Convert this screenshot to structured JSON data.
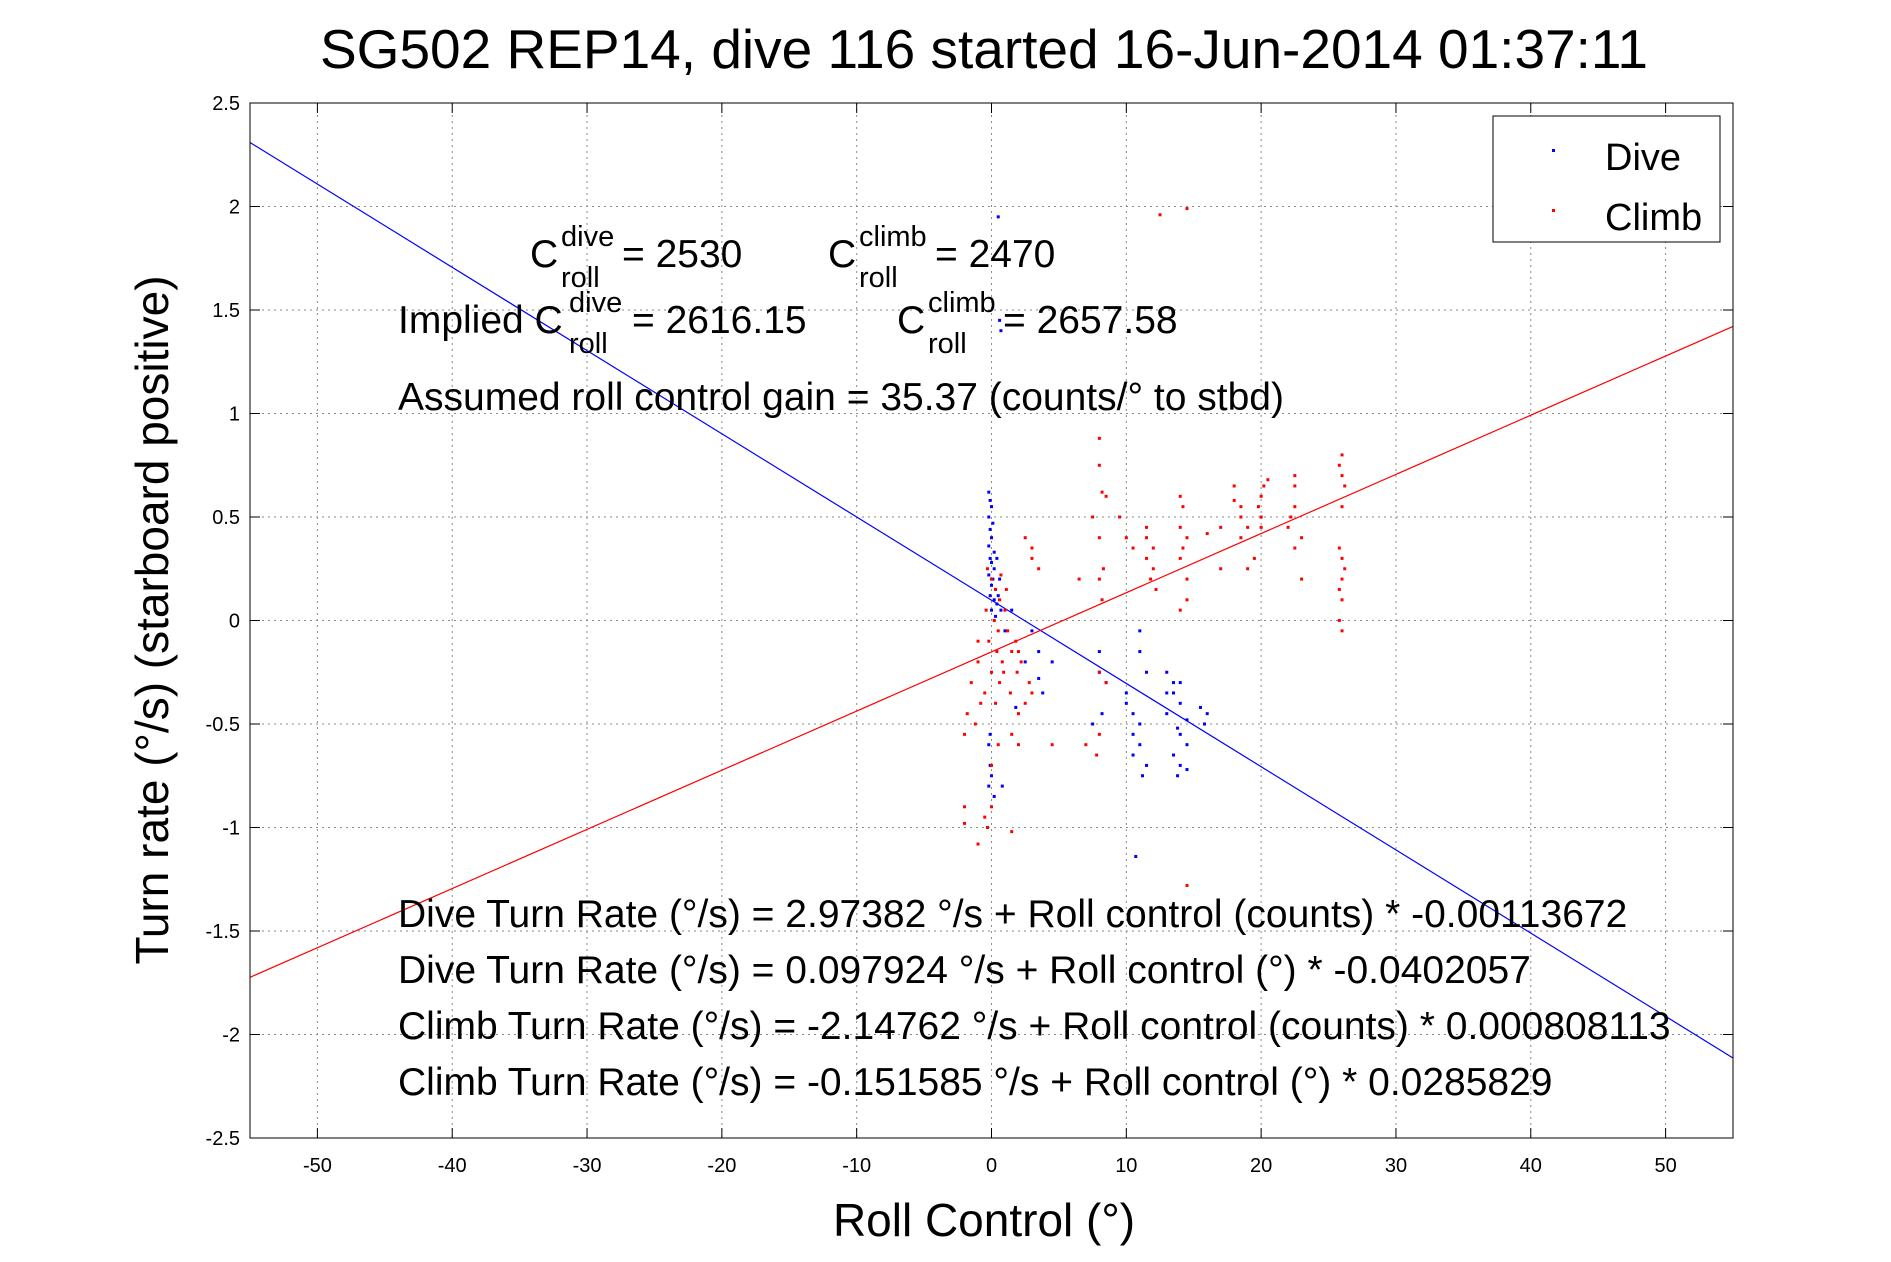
{
  "chart_data": {
    "type": "scatter",
    "title": "SG502 REP14, dive 116 started 16-Jun-2014 01:37:11",
    "xlabel": "Roll Control (°)",
    "ylabel": "Turn rate (°/s) (starboard positive)",
    "xlim": [
      -55,
      55
    ],
    "ylim": [
      -2.5,
      2.5
    ],
    "xticks": [
      -50,
      -40,
      -30,
      -20,
      -10,
      0,
      10,
      20,
      30,
      40,
      50
    ],
    "yticks": [
      -2.5,
      -2,
      -1.5,
      -1,
      -0.5,
      0,
      0.5,
      1,
      1.5,
      2,
      2.5
    ],
    "grid": true,
    "legend_position": "top-right",
    "colors": {
      "dive": "#0000ff",
      "climb": "#ff0000"
    },
    "annotations": {
      "c_roll_dive": {
        "base": "C",
        "sup": "dive",
        "sub": "roll",
        "value": " = 2530"
      },
      "c_roll_climb": {
        "base": "C",
        "sup": "climb",
        "sub": "roll",
        "value": " = 2470"
      },
      "implied_dive": {
        "prefix": "Implied C",
        "sup": "dive",
        "sub": "roll",
        "value": " = 2616.15"
      },
      "implied_climb": {
        "base": "C",
        "sup": "climb",
        "sub": "roll",
        "value": " = 2657.58"
      },
      "gain": "Assumed roll control gain = 35.37 (counts/° to stbd)",
      "eq1": "Dive Turn Rate (°/s) = 2.97382 °/s + Roll control (counts) * -0.00113672",
      "eq2": "Dive Turn Rate (°/s) = 0.097924 °/s + Roll control (°) * -0.0402057",
      "eq3": "Climb Turn Rate (°/s) = -2.14762 °/s + Roll control (counts) * 0.000808113",
      "eq4": "Climb Turn Rate (°/s) = -0.151585 °/s + Roll control (°) * 0.0285829"
    },
    "fits": [
      {
        "series": "Dive",
        "intercept": 0.097924,
        "slope": -0.0402057
      },
      {
        "series": "Climb",
        "intercept": -0.151585,
        "slope": 0.0285829
      }
    ],
    "series": [
      {
        "name": "Dive",
        "points": [
          [
            0.5,
            1.95
          ],
          [
            0.6,
            1.45
          ],
          [
            0.7,
            1.4
          ],
          [
            -0.2,
            0.62
          ],
          [
            -0.1,
            0.58
          ],
          [
            0.0,
            0.55
          ],
          [
            -0.2,
            0.5
          ],
          [
            0.1,
            0.47
          ],
          [
            -0.1,
            0.44
          ],
          [
            0.0,
            0.4
          ],
          [
            -0.2,
            0.36
          ],
          [
            0.2,
            0.33
          ],
          [
            -0.1,
            0.3
          ],
          [
            0.0,
            0.28
          ],
          [
            0.2,
            0.25
          ],
          [
            -0.2,
            0.22
          ],
          [
            0.1,
            0.2
          ],
          [
            0.0,
            0.17
          ],
          [
            0.3,
            0.15
          ],
          [
            -0.1,
            0.12
          ],
          [
            0.2,
            0.1
          ],
          [
            0.4,
            0.08
          ],
          [
            0.0,
            0.05
          ],
          [
            0.3,
            0.02
          ],
          [
            0.5,
            0.12
          ],
          [
            0.6,
            0.2
          ],
          [
            0.4,
            0.3
          ],
          [
            0.7,
            0.05
          ],
          [
            1.0,
            -0.05
          ],
          [
            1.5,
            0.05
          ],
          [
            -0.2,
            -0.6
          ],
          [
            -0.1,
            -0.7
          ],
          [
            0.0,
            -0.75
          ],
          [
            -0.2,
            -0.8
          ],
          [
            0.2,
            -0.85
          ],
          [
            0.8,
            -0.8
          ],
          [
            -0.1,
            -0.55
          ],
          [
            3.0,
            -0.05
          ],
          [
            3.5,
            -0.15
          ],
          [
            2.5,
            -0.2
          ],
          [
            3.5,
            -0.28
          ],
          [
            4.5,
            -0.2
          ],
          [
            3.8,
            -0.35
          ],
          [
            1.8,
            -0.42
          ],
          [
            7.5,
            -0.5
          ],
          [
            8.0,
            -0.15
          ],
          [
            8.0,
            -0.25
          ],
          [
            8.5,
            -0.3
          ],
          [
            8.2,
            -0.45
          ],
          [
            10.0,
            -0.4
          ],
          [
            10.5,
            -0.45
          ],
          [
            11.0,
            -0.5
          ],
          [
            10.5,
            -0.55
          ],
          [
            11.0,
            -0.6
          ],
          [
            11.5,
            -0.7
          ],
          [
            11.2,
            -0.75
          ],
          [
            10.5,
            -0.65
          ],
          [
            11.0,
            -0.05
          ],
          [
            11.0,
            -0.15
          ],
          [
            11.5,
            -0.25
          ],
          [
            10.0,
            -0.35
          ],
          [
            10.7,
            -1.14
          ],
          [
            13.0,
            -0.25
          ],
          [
            13.5,
            -0.3
          ],
          [
            13.5,
            -0.35
          ],
          [
            14.0,
            -0.4
          ],
          [
            13.0,
            -0.45
          ],
          [
            14.5,
            -0.48
          ],
          [
            13.8,
            -0.52
          ],
          [
            14.0,
            -0.55
          ],
          [
            14.5,
            -0.6
          ],
          [
            13.5,
            -0.65
          ],
          [
            14.0,
            -0.7
          ],
          [
            14.5,
            -0.72
          ],
          [
            13.8,
            -0.75
          ],
          [
            13.0,
            -0.35
          ],
          [
            14.0,
            -0.3
          ],
          [
            15.5,
            -0.42
          ],
          [
            16.0,
            -0.45
          ],
          [
            15.8,
            -0.5
          ]
        ]
      },
      {
        "name": "Climb",
        "points": [
          [
            12.5,
            1.96
          ],
          [
            14.5,
            1.99
          ],
          [
            -0.3,
            0.25
          ],
          [
            0.0,
            0.2
          ],
          [
            0.3,
            0.15
          ],
          [
            0.6,
            0.1
          ],
          [
            -0.4,
            0.05
          ],
          [
            0.2,
            0.0
          ],
          [
            0.5,
            -0.05
          ],
          [
            -0.2,
            -0.1
          ],
          [
            0.4,
            -0.15
          ],
          [
            0.8,
            -0.2
          ],
          [
            0.0,
            -0.25
          ],
          [
            0.6,
            -0.3
          ],
          [
            -0.5,
            -0.35
          ],
          [
            0.3,
            -0.4
          ],
          [
            1.0,
            0.05
          ],
          [
            1.2,
            -0.05
          ],
          [
            1.5,
            -0.15
          ],
          [
            0.9,
            -0.25
          ],
          [
            1.4,
            -0.35
          ],
          [
            1.1,
            0.15
          ],
          [
            0.7,
            0.22
          ],
          [
            -1.0,
            -0.2
          ],
          [
            -1.5,
            -0.3
          ],
          [
            -0.8,
            -0.4
          ],
          [
            -1.2,
            -0.5
          ],
          [
            -2.0,
            -0.55
          ],
          [
            -1.8,
            -0.45
          ],
          [
            -1.0,
            -0.1
          ],
          [
            -2.0,
            -0.9
          ],
          [
            -2.0,
            -0.98
          ],
          [
            -0.5,
            -0.95
          ],
          [
            -1.0,
            -1.08
          ],
          [
            0.0,
            -0.9
          ],
          [
            1.5,
            -1.02
          ],
          [
            -0.3,
            -1.0
          ],
          [
            0.5,
            -0.6
          ],
          [
            0.0,
            -0.7
          ],
          [
            1.5,
            -0.55
          ],
          [
            2.0,
            -0.6
          ],
          [
            2.0,
            -0.45
          ],
          [
            2.5,
            -0.4
          ],
          [
            3.0,
            -0.35
          ],
          [
            1.8,
            -0.1
          ],
          [
            2.0,
            -0.15
          ],
          [
            2.2,
            -0.2
          ],
          [
            1.9,
            -0.25
          ],
          [
            3.0,
            0.3
          ],
          [
            3.0,
            0.35
          ],
          [
            2.5,
            0.4
          ],
          [
            3.5,
            0.25
          ],
          [
            2.8,
            -0.3
          ],
          [
            4.5,
            -0.6
          ],
          [
            6.5,
            0.2
          ],
          [
            7.5,
            0.5
          ],
          [
            8.0,
            0.88
          ],
          [
            8.0,
            0.75
          ],
          [
            8.2,
            0.62
          ],
          [
            8.5,
            0.6
          ],
          [
            8.0,
            0.4
          ],
          [
            8.3,
            0.25
          ],
          [
            8.0,
            0.2
          ],
          [
            8.2,
            0.1
          ],
          [
            8.0,
            -0.25
          ],
          [
            8.5,
            -0.3
          ],
          [
            8.0,
            -0.55
          ],
          [
            7.8,
            -0.65
          ],
          [
            7.0,
            -0.6
          ],
          [
            9.5,
            0.5
          ],
          [
            10.0,
            0.4
          ],
          [
            10.5,
            0.35
          ],
          [
            11.5,
            0.4
          ],
          [
            11.5,
            0.3
          ],
          [
            12.0,
            0.25
          ],
          [
            11.8,
            0.2
          ],
          [
            12.2,
            0.15
          ],
          [
            11.5,
            0.45
          ],
          [
            12.0,
            0.35
          ],
          [
            14.0,
            0.6
          ],
          [
            14.2,
            0.55
          ],
          [
            14.0,
            0.45
          ],
          [
            14.5,
            0.4
          ],
          [
            14.2,
            0.35
          ],
          [
            14.0,
            0.3
          ],
          [
            14.5,
            0.2
          ],
          [
            14.5,
            0.1
          ],
          [
            14.5,
            -1.28
          ],
          [
            14.0,
            0.05
          ],
          [
            16.0,
            0.42
          ],
          [
            17.0,
            0.45
          ],
          [
            18.0,
            0.58
          ],
          [
            18.5,
            0.55
          ],
          [
            18.5,
            0.5
          ],
          [
            19.0,
            0.45
          ],
          [
            18.5,
            0.4
          ],
          [
            18.0,
            0.65
          ],
          [
            17.0,
            0.25
          ],
          [
            19.0,
            0.25
          ],
          [
            19.5,
            0.3
          ],
          [
            20.0,
            0.6
          ],
          [
            19.8,
            0.55
          ],
          [
            20.2,
            0.65
          ],
          [
            20.0,
            0.5
          ],
          [
            20.5,
            0.68
          ],
          [
            20.0,
            0.45
          ],
          [
            22.0,
            0.45
          ],
          [
            22.5,
            0.55
          ],
          [
            22.5,
            0.65
          ],
          [
            22.5,
            0.7
          ],
          [
            23.0,
            0.4
          ],
          [
            22.5,
            0.35
          ],
          [
            22.2,
            0.5
          ],
          [
            23.0,
            0.2
          ],
          [
            26.0,
            0.8
          ],
          [
            25.8,
            0.75
          ],
          [
            26.0,
            0.7
          ],
          [
            26.2,
            0.65
          ],
          [
            26.0,
            0.55
          ],
          [
            25.8,
            0.35
          ],
          [
            26.0,
            0.3
          ],
          [
            26.2,
            0.25
          ],
          [
            26.0,
            0.2
          ],
          [
            25.8,
            0.15
          ],
          [
            26.0,
            0.1
          ],
          [
            25.8,
            0.0
          ],
          [
            26.0,
            -0.05
          ]
        ]
      }
    ]
  }
}
